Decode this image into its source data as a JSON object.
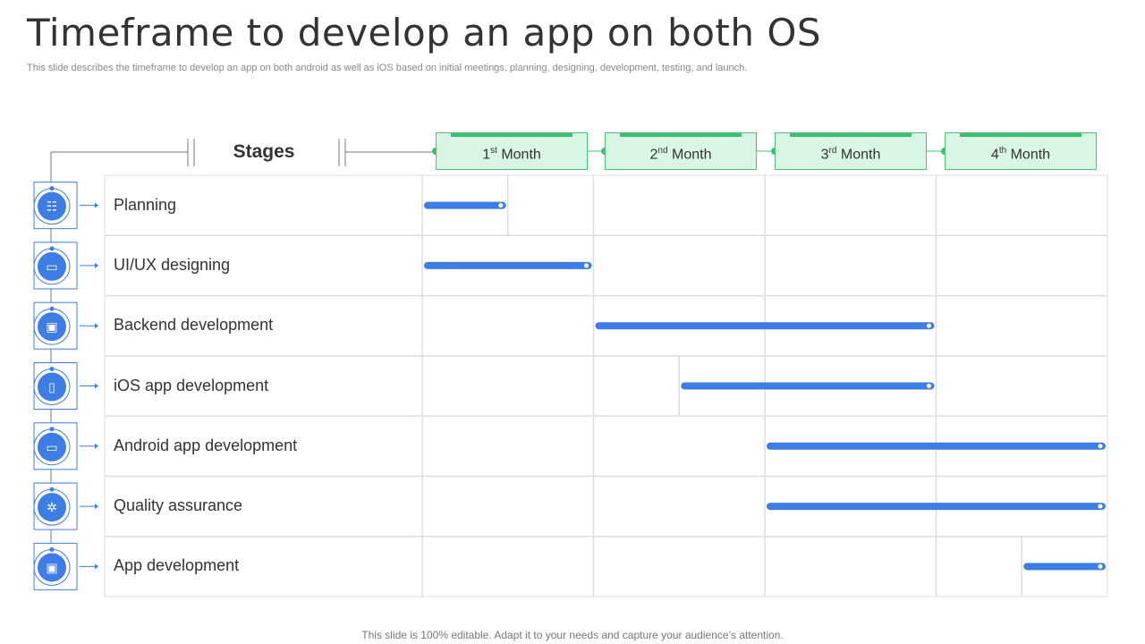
{
  "title": "Timeframe to develop an app on both OS",
  "subtitle": "This slide describes the timeframe to develop an app on both android as well as iOS based on initial meetings, planning, designing, development, testing, and launch.",
  "footer": "This slide is 100% editable. Adapt it to your needs and capture your audience’s attention.",
  "stages_header": "Stages",
  "months": [
    {
      "num": "1",
      "sup": "st",
      "word": "Month"
    },
    {
      "num": "2",
      "sup": "nd",
      "word": "Month"
    },
    {
      "num": "3",
      "sup": "rd",
      "word": "Month"
    },
    {
      "num": "4",
      "sup": "th",
      "word": "Month"
    }
  ],
  "colors": {
    "bar": "#3f7de6",
    "month_fill": "#d9f5e4",
    "month_border": "#4bc27a",
    "icon": "#3f7de6"
  },
  "chart_data": {
    "type": "gantt",
    "unit": "months",
    "range": [
      0,
      4
    ],
    "tasks": [
      {
        "name": "Planning",
        "icon": "team-meeting-icon",
        "start": 0,
        "end": 0.5
      },
      {
        "name": "UI/UX designing",
        "icon": "design-monitor-icon",
        "start": 0,
        "end": 1
      },
      {
        "name": "Backend development",
        "icon": "browser-settings-icon",
        "start": 1,
        "end": 3
      },
      {
        "name": "iOS app development",
        "icon": "mobile-settings-icon",
        "start": 1.5,
        "end": 3
      },
      {
        "name": "Android app development",
        "icon": "android-monitor-icon",
        "start": 2,
        "end": 4
      },
      {
        "name": "Quality assurance",
        "icon": "gear-check-icon",
        "start": 2,
        "end": 4
      },
      {
        "name": "App development",
        "icon": "browser-gear-icon",
        "start": 3.5,
        "end": 4
      }
    ]
  }
}
